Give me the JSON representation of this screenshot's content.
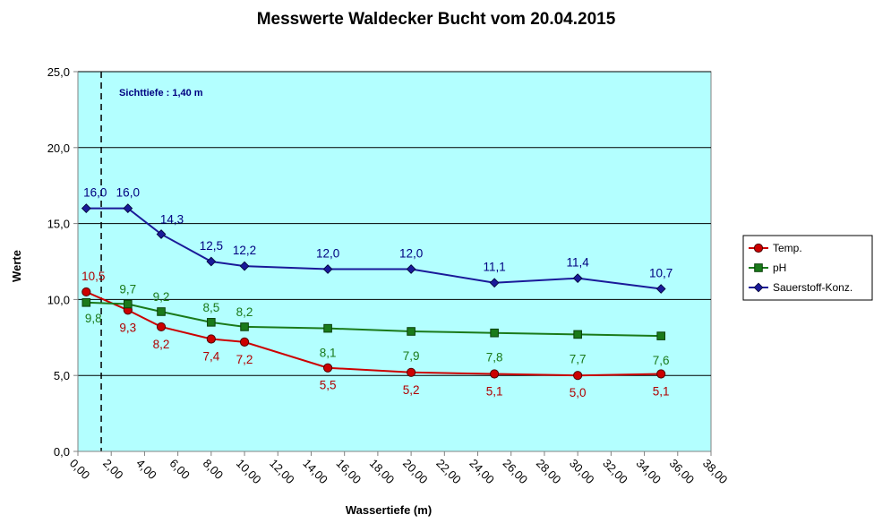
{
  "chart_data": {
    "type": "line",
    "title": "Messwerte Waldecker Bucht vom 20.04.2015",
    "xlabel": "Wassertiefe  (m)",
    "ylabel": "Werte",
    "xlim": [
      0,
      38
    ],
    "ylim": [
      0,
      25
    ],
    "x_ticks": [
      "0,00",
      "2,00",
      "4,00",
      "6,00",
      "8,00",
      "10,00",
      "12,00",
      "14,00",
      "16,00",
      "18,00",
      "20,00",
      "22,00",
      "24,00",
      "26,00",
      "28,00",
      "30,00",
      "32,00",
      "34,00",
      "36,00",
      "38,00"
    ],
    "y_ticks": [
      "0,0",
      "5,0",
      "10,0",
      "15,0",
      "20,0",
      "25,0"
    ],
    "grid": "horizontal",
    "plot_background": "#b3ffff",
    "legend_position": "right",
    "annotation": {
      "text": "Sichttiefe : 1,40 m",
      "x": 1.4,
      "color": "#000080"
    },
    "series": [
      {
        "name": "Temp.",
        "color": "#cc0000",
        "marker": "circle",
        "x": [
          0.5,
          3,
          5,
          8,
          10,
          15,
          20,
          25,
          30,
          35
        ],
        "y": [
          10.5,
          9.3,
          8.2,
          7.4,
          7.2,
          5.5,
          5.2,
          5.1,
          5.0,
          5.1
        ],
        "labels": [
          "10,5",
          "9,3",
          "8,2",
          "7,4",
          "7,2",
          "5,5",
          "5,2",
          "5,1",
          "5,0",
          "5,1"
        ],
        "label_color": "#b00000"
      },
      {
        "name": "pH",
        "color": "#1a7a1a",
        "marker": "square",
        "x": [
          0.5,
          3,
          5,
          8,
          10,
          15,
          20,
          25,
          30,
          35
        ],
        "y": [
          9.8,
          9.7,
          9.2,
          8.5,
          8.2,
          8.1,
          7.9,
          7.8,
          7.7,
          7.6
        ],
        "labels": [
          "9,8",
          "9,7",
          "9,2",
          "8,5",
          "8,2",
          "8,1",
          "7,9",
          "7,8",
          "7,7",
          "7,6"
        ],
        "label_color": "#1a7a1a"
      },
      {
        "name": "Sauerstoff-Konz.",
        "color": "#1a1a99",
        "marker": "diamond",
        "x": [
          0.5,
          3,
          5,
          8,
          10,
          15,
          20,
          25,
          30,
          35
        ],
        "y": [
          16.0,
          16.0,
          14.3,
          12.5,
          12.2,
          12.0,
          12.0,
          11.1,
          11.4,
          10.7
        ],
        "labels": [
          "16,0",
          "16,0",
          "14,3",
          "12,5",
          "12,2",
          "12,0",
          "12,0",
          "11,1",
          "11,4",
          "10,7"
        ],
        "label_color": "#000080"
      }
    ]
  }
}
